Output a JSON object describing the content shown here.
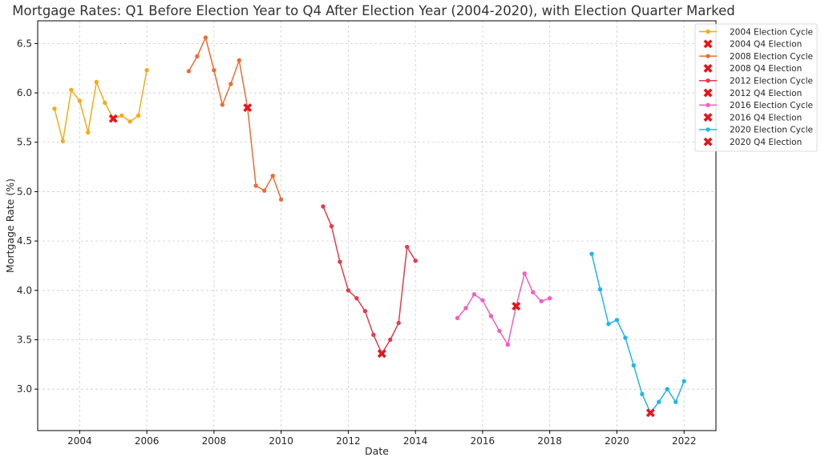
{
  "chart_data": {
    "type": "line",
    "title": "Mortgage Rates: Q1 Before Election Year to Q4 After Election Year (2004-2020), with Election Quarter Marked",
    "xlabel": "Date",
    "ylabel": "Mortgage Rate (%)",
    "xlim": [
      2002.75,
      2022.95
    ],
    "ylim": [
      2.58,
      6.73
    ],
    "xticks": [
      2004,
      2006,
      2008,
      2010,
      2012,
      2014,
      2016,
      2018,
      2020,
      2022
    ],
    "yticks": [
      3.0,
      3.5,
      4.0,
      4.5,
      5.0,
      5.5,
      6.0,
      6.5
    ],
    "ytick_labels": [
      "3.0",
      "3.5",
      "4.0",
      "4.5",
      "5.0",
      "5.5",
      "6.0",
      "6.5"
    ],
    "grid": true,
    "legend_position": "top-right",
    "series": [
      {
        "name": "2004 Election Cycle",
        "color": "#f5ab18",
        "x": [
          2003.25,
          2003.5,
          2003.75,
          2004.0,
          2004.25,
          2004.5,
          2004.75,
          2005.0,
          2005.25,
          2005.5,
          2005.75,
          2006.0
        ],
        "y": [
          5.84,
          5.51,
          6.03,
          5.92,
          5.6,
          6.11,
          5.9,
          5.74,
          5.77,
          5.71,
          5.77,
          6.23
        ],
        "election": {
          "name": "2004 Q4 Election",
          "x": 2005.0,
          "y": 5.74
        }
      },
      {
        "name": "2008 Election Cycle",
        "color": "#ed6c33",
        "x": [
          2007.25,
          2007.5,
          2007.75,
          2008.0,
          2008.25,
          2008.5,
          2008.75,
          2009.0,
          2009.25,
          2009.5,
          2009.75,
          2010.0
        ],
        "y": [
          6.22,
          6.37,
          6.56,
          6.23,
          5.88,
          6.09,
          6.33,
          5.85,
          5.06,
          5.01,
          5.16,
          4.92
        ],
        "election": {
          "name": "2008 Q4 Election",
          "x": 2009.0,
          "y": 5.85
        }
      },
      {
        "name": "2012 Election Cycle",
        "color": "#e83a4b",
        "x": [
          2011.25,
          2011.5,
          2011.75,
          2012.0,
          2012.25,
          2012.5,
          2012.75,
          2013.0,
          2013.25,
          2013.5,
          2013.75,
          2014.0
        ],
        "y": [
          4.85,
          4.65,
          4.29,
          4.0,
          3.92,
          3.79,
          3.55,
          3.36,
          3.5,
          3.67,
          4.44,
          4.3
        ],
        "election": {
          "name": "2012 Q4 Election",
          "x": 2013.0,
          "y": 3.36
        }
      },
      {
        "name": "2016 Election Cycle",
        "color": "#f25ec5",
        "x": [
          2015.25,
          2015.5,
          2015.75,
          2016.0,
          2016.25,
          2016.5,
          2016.75,
          2017.0,
          2017.25,
          2017.5,
          2017.75,
          2018.0
        ],
        "y": [
          3.72,
          3.82,
          3.96,
          3.9,
          3.74,
          3.59,
          3.45,
          3.84,
          4.17,
          3.98,
          3.89,
          3.92
        ],
        "election": {
          "name": "2016 Q4 Election",
          "x": 2017.0,
          "y": 3.84
        }
      },
      {
        "name": "2020 Election Cycle",
        "color": "#1fb6ef",
        "x": [
          2019.25,
          2019.5,
          2019.75,
          2020.0,
          2020.25,
          2020.5,
          2020.75,
          2021.0,
          2021.25,
          2021.5,
          2021.75,
          2022.0
        ],
        "y": [
          4.37,
          4.01,
          3.66,
          3.7,
          3.52,
          3.24,
          2.95,
          2.76,
          2.87,
          3.0,
          2.87,
          3.08
        ],
        "election": {
          "name": "2020 Q4 Election",
          "x": 2021.0,
          "y": 2.76
        }
      }
    ]
  }
}
